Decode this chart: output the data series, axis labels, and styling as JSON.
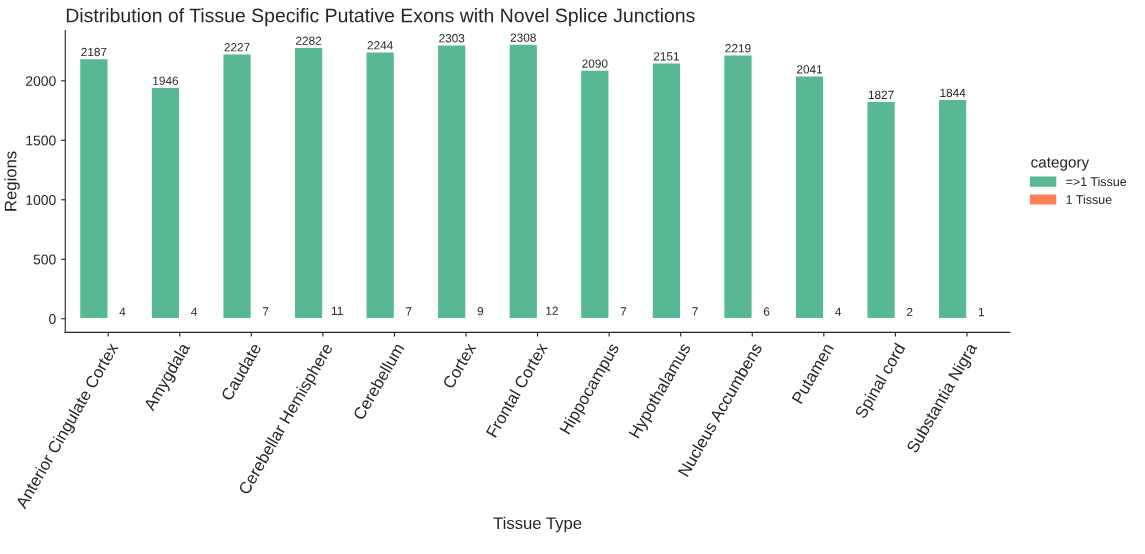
{
  "chart_data": {
    "type": "bar",
    "title": "Distribution of Tissue Specific Putative Exons with Novel Splice Junctions",
    "xlabel": "Tissue Type",
    "ylabel": "Regions",
    "legend_title": "category",
    "categories": [
      "Anterior Cingulate Cortex",
      "Amygdala",
      "Caudate",
      "Cerebellar Hemisphere",
      "Cerebellum",
      "Cortex",
      "Frontal Cortex",
      "Hippocampus",
      "Hypothalamus",
      "Nucleus Accumbens",
      "Putamen",
      "Spinal cord",
      "Substantia Nigra"
    ],
    "series": [
      {
        "name": "=>1 Tissue",
        "color": "#57b893",
        "values": [
          2187,
          1946,
          2227,
          2282,
          2244,
          2303,
          2308,
          2090,
          2151,
          2219,
          2041,
          1827,
          1844
        ]
      },
      {
        "name": "1 Tissue",
        "color": "#fc8055",
        "values": [
          4,
          4,
          7,
          11,
          7,
          9,
          12,
          7,
          7,
          6,
          4,
          2,
          1
        ]
      }
    ],
    "ylim": [
      -115,
      2423
    ],
    "yticks": [
      0,
      500,
      1000,
      1500,
      2000
    ],
    "data_labels": true,
    "legend": "right",
    "grid": false
  }
}
